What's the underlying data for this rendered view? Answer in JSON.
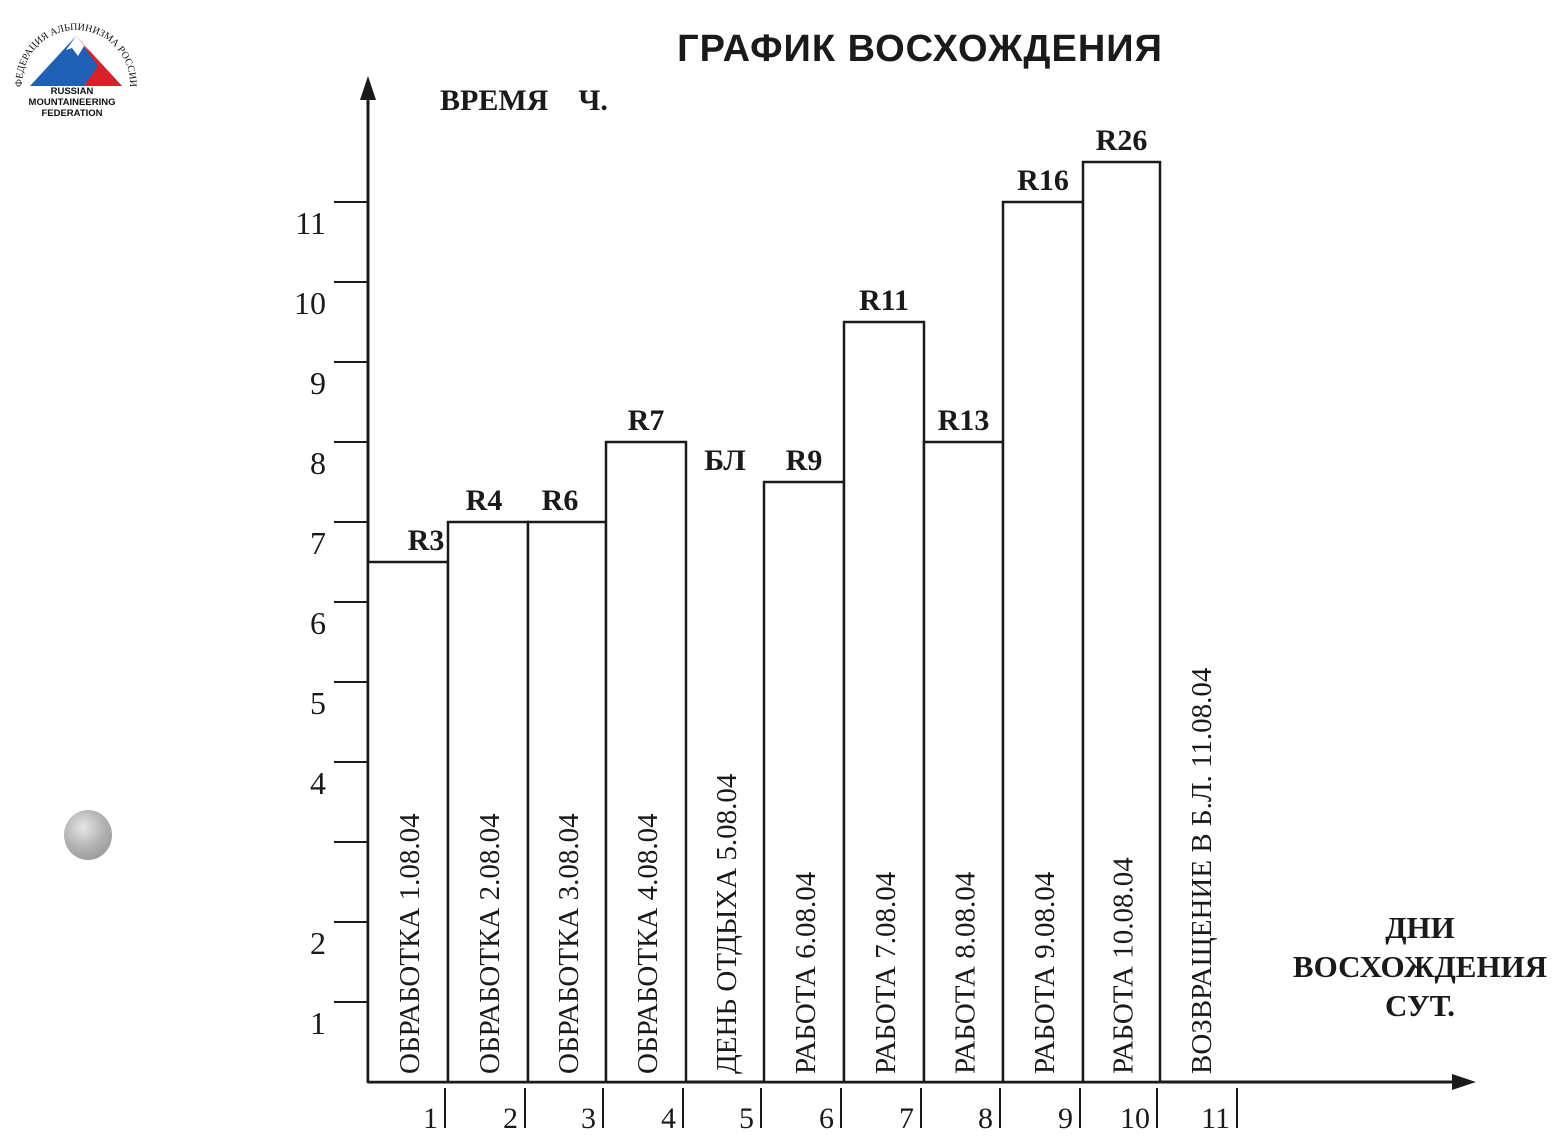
{
  "logo": {
    "arc_text": "ФЕДЕРАЦИЯ АЛЬПИНИЗМА РОССИИ",
    "line1": "RUSSIAN",
    "line2": "MOUNTAINEERING",
    "line3": "FEDERATION",
    "colors": {
      "sky": "#1f5fb4",
      "red": "#d8222a",
      "snow": "#ffffff"
    }
  },
  "chart_data": {
    "type": "bar",
    "title": "ГРАФИК  ВОСХОЖДЕНИЯ",
    "ylabel": "ВРЕМЯ    Ч.",
    "xlabel": [
      "ДНИ",
      "ВОСХОЖДЕНИЯ",
      "СУТ."
    ],
    "ylim": [
      0,
      12
    ],
    "y_tick_labels": [
      "1",
      "2",
      "",
      "4",
      "5",
      "6",
      "7",
      "8",
      "9",
      "10",
      "11"
    ],
    "y_tick_values": [
      1,
      2,
      3,
      4,
      5,
      6,
      7,
      8,
      9,
      10,
      11
    ],
    "categories": [
      "1",
      "2",
      "3",
      "4",
      "5",
      "6",
      "7",
      "8",
      "9",
      "10",
      "11"
    ],
    "values": [
      6.5,
      7,
      7,
      8,
      null,
      7.5,
      9.5,
      8,
      11,
      11.5,
      null
    ],
    "top_labels": [
      "R3",
      "R4",
      "R6",
      "R7",
      "БЛ",
      "R9",
      "R11",
      "R13",
      "R16",
      "R26",
      ""
    ],
    "bar_text": [
      "ОБРАБОТКА  1.08.04",
      "ОБРАБОТКА  2.08.04",
      "ОБРАБОТКА  3.08.04",
      "ОБРАБОТКА  4.08.04",
      "ДЕНЬ ОТДЫХА  5.08.04",
      "РАБОТА  6.08.04",
      "РАБОТА  7.08.04",
      "РАБОТА  8.08.04",
      "РАБОТА  9.08.04",
      "РАБОТА  10.08.04",
      "ВОЗВРАЩЕНИЕ  В  Б.Л.  11.08.04"
    ],
    "grid": false,
    "colors": {
      "line": "#1a1a1a",
      "bar_fill": "#ffffff"
    }
  }
}
